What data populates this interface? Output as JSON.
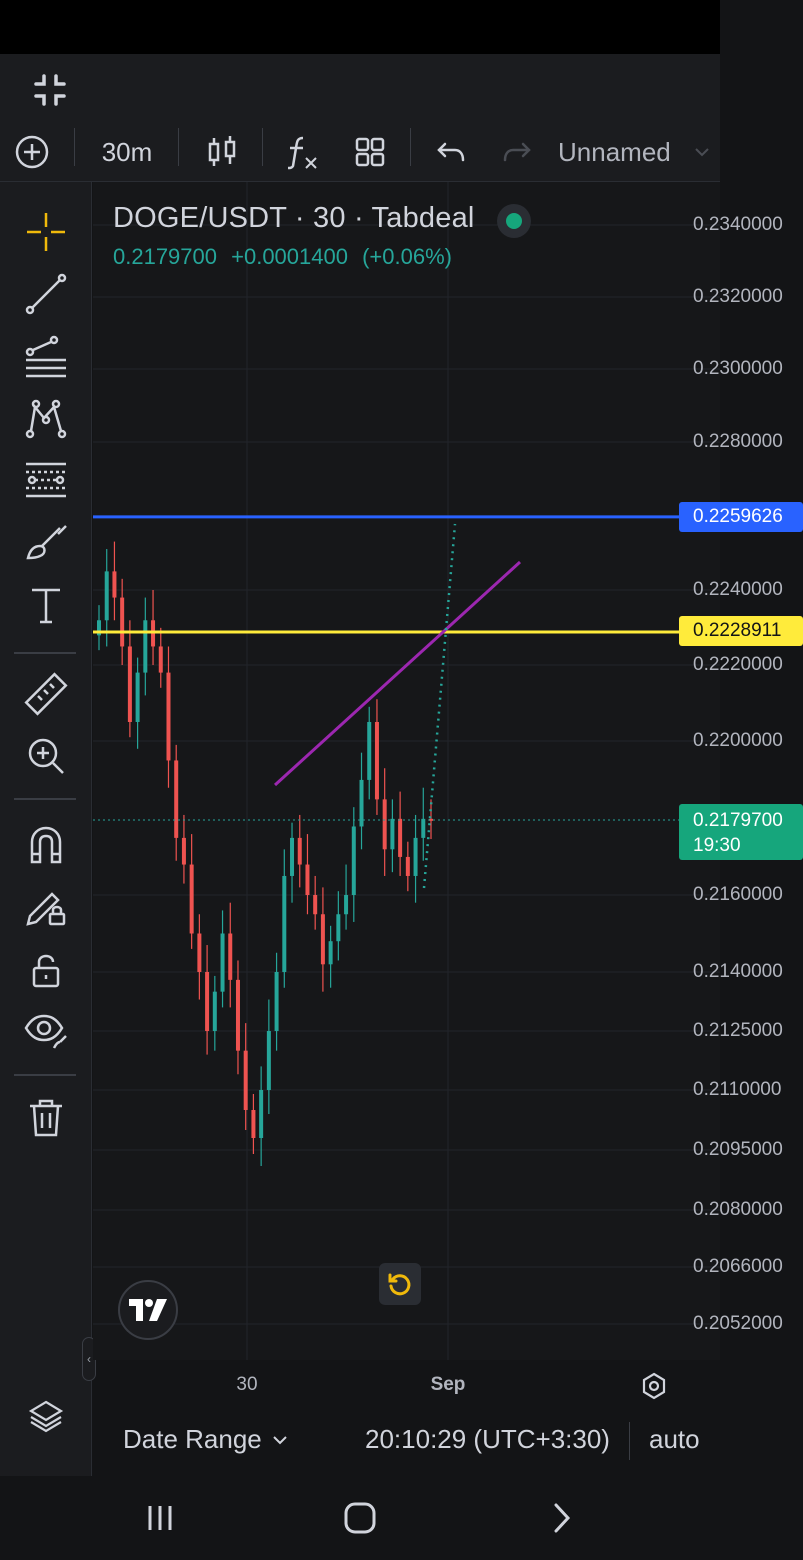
{
  "toolbar": {
    "interval": "30m",
    "layout_name": "Unnamed"
  },
  "legend": {
    "title": "DOGE/USDT · 30 · Tabdeal",
    "price": "0.2179700",
    "change": "+0.0001400",
    "change_pct": "(+0.06%)",
    "status_color": "#16a67c"
  },
  "price_axis": {
    "labels": [
      "0.2340000",
      "0.2320000",
      "0.2300000",
      "0.2280000",
      "0.2240000",
      "0.2220000",
      "0.2200000",
      "0.2160000",
      "0.2140000",
      "0.2125000",
      "0.2110000",
      "0.2095000",
      "0.2080000",
      "0.2066000",
      "0.2052000"
    ]
  },
  "price_tags": {
    "blue_line": "0.2259626",
    "yellow_line": "0.2228911",
    "last_price": "0.2179700",
    "countdown": "19:30"
  },
  "colors": {
    "up": "#26a69a",
    "down": "#ef5350",
    "blue_line": "#2962ff",
    "yellow_line": "#ffeb3b",
    "trend_line": "#9c27b0",
    "accent": "#f0b90b"
  },
  "time_axis": {
    "labels": [
      "30",
      "Sep"
    ]
  },
  "bottom_bar": {
    "date_range": "Date Range",
    "clock": "20:10:29 (UTC+3:30)",
    "auto": "auto"
  },
  "chart_data": {
    "type": "candlestick",
    "symbol": "DOGE/USDT",
    "interval": "30",
    "exchange": "Tabdeal",
    "last": 0.21797,
    "horizontal_lines": [
      0.2259626,
      0.2228911
    ],
    "candles_close_approx": [
      0.2232,
      0.2245,
      0.2238,
      0.2225,
      0.2205,
      0.2218,
      0.2232,
      0.2225,
      0.2218,
      0.2195,
      0.2175,
      0.2168,
      0.215,
      0.214,
      0.2125,
      0.2135,
      0.215,
      0.2138,
      0.212,
      0.2105,
      0.2098,
      0.211,
      0.2125,
      0.214,
      0.2165,
      0.2175,
      0.2168,
      0.216,
      0.2155,
      0.2142,
      0.2148,
      0.2155,
      0.216,
      0.2178,
      0.219,
      0.2205,
      0.2185,
      0.2172,
      0.218,
      0.217,
      0.2165,
      0.2175,
      0.218,
      0.21797
    ]
  }
}
